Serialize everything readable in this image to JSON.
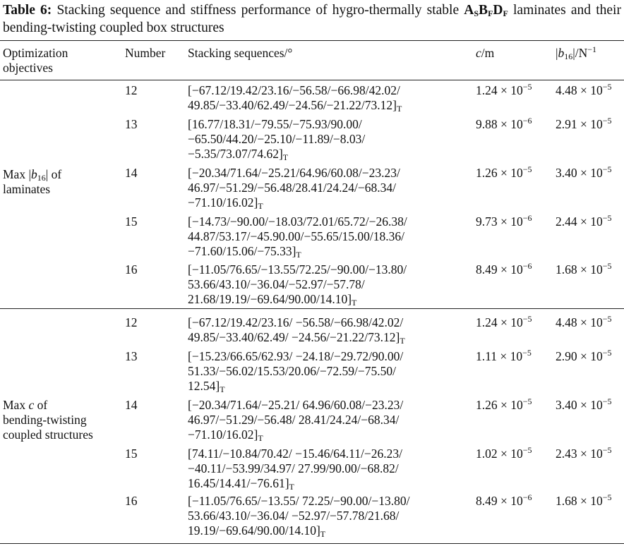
{
  "caption": {
    "label": "Table 6:",
    "text_before": " Stacking sequence and stiffness performance of hygro-thermally stable ",
    "code": [
      "A",
      "S",
      "B",
      "F",
      "D",
      "F"
    ],
    "text_after": " laminates and their bending-twisting coupled box structures"
  },
  "headers": {
    "objective_line1": "Optimization",
    "objective_line2": "objectives",
    "number": "Number",
    "stacking": "Stacking sequences/°",
    "c_var": "c",
    "c_unit": "/m",
    "b_pre": "|",
    "b_var": "b",
    "b_sub": "16",
    "b_post": "|/N",
    "b_exp": "−1"
  },
  "groups": [
    {
      "objective": {
        "line1_pre": "Max |",
        "line1_var": "b",
        "line1_sub": "16",
        "line1_post": "| of",
        "line2": "laminates"
      },
      "rows": [
        {
          "number": "12",
          "lines": [
            "[−67.12/19.42/23.16/−56.58/−66.98/42.02/",
            "49.85/−33.40/62.49/−24.56/−21.22/73.12]"
          ],
          "subscript": "T",
          "c_mant": "1.24 × 10",
          "c_exp": "−5",
          "b_mant": "4.48 × 10",
          "b_exp": "−5"
        },
        {
          "number": "13",
          "lines": [
            "[16.77/18.31/−79.55/−75.93/90.00/",
            "−65.50/44.20/−25.10/−11.89/−8.03/",
            "−5.35/73.07/74.62]"
          ],
          "subscript": "T",
          "c_mant": "9.88 × 10",
          "c_exp": "−6",
          "b_mant": "2.91 × 10",
          "b_exp": "−5"
        },
        {
          "number": "14",
          "lines": [
            "[−20.34/71.64/−25.21/64.96/60.08/−23.23/",
            "46.97/−51.29/−56.48/28.41/24.24/−68.34/",
            "−71.10/16.02]"
          ],
          "subscript": "T",
          "c_mant": "1.26 × 10",
          "c_exp": "−5",
          "b_mant": "3.40 × 10",
          "b_exp": "−5"
        },
        {
          "number": "15",
          "lines": [
            "[−14.73/−90.00/−18.03/72.01/65.72/−26.38/",
            "44.87/53.17/−45.90.00/−55.65/15.00/18.36/",
            "−71.60/15.06/−75.33]"
          ],
          "subscript": "T",
          "c_mant": "9.73 × 10",
          "c_exp": "−6",
          "b_mant": "2.44 × 10",
          "b_exp": "−5"
        },
        {
          "number": "16",
          "lines": [
            "[−11.05/76.65/−13.55/72.25/−90.00/−13.80/",
            "53.66/43.10/−36.04/−52.97/−57.78/",
            "21.68/19.19/−69.64/90.00/14.10]"
          ],
          "subscript": "T",
          "c_mant": "8.49 × 10",
          "c_exp": "−6",
          "b_mant": "1.68 × 10",
          "b_exp": "−5"
        }
      ]
    },
    {
      "objective": {
        "line1_pre": "Max ",
        "line1_var": "c",
        "line1_sub": "",
        "line1_post": " of",
        "line2": "bending-twisting",
        "line3": "coupled structures"
      },
      "rows": [
        {
          "number": "12",
          "lines": [
            "[−67.12/19.42/23.16/ −56.58/−66.98/42.02/",
            "49.85/−33.40/62.49/ −24.56/−21.22/73.12]"
          ],
          "subscript": "T",
          "c_mant": "1.24 × 10",
          "c_exp": "−5",
          "b_mant": "4.48 × 10",
          "b_exp": "−5"
        },
        {
          "number": "13",
          "lines": [
            "[−15.23/66.65/62.93/ −24.18/−29.72/90.00/",
            "51.33/−56.02/15.53/20.06/−72.59/−75.50/",
            "12.54]"
          ],
          "subscript": "T",
          "c_mant": "1.11 × 10",
          "c_exp": "−5",
          "b_mant": "2.90 × 10",
          "b_exp": "−5"
        },
        {
          "number": "14",
          "lines": [
            "[−20.34/71.64/−25.21/ 64.96/60.08/−23.23/",
            "46.97/−51.29/−56.48/ 28.41/24.24/−68.34/",
            "−71.10/16.02]"
          ],
          "subscript": "T",
          "c_mant": "1.26 × 10",
          "c_exp": "−5",
          "b_mant": "3.40 × 10",
          "b_exp": "−5"
        },
        {
          "number": "15",
          "lines": [
            "[74.11/−10.84/70.42/ −15.46/64.11/−26.23/",
            "−40.11/−53.99/34.97/ 27.99/90.00/−68.82/",
            "16.45/14.41/−76.61]"
          ],
          "subscript": "T",
          "c_mant": "1.02 × 10",
          "c_exp": "−5",
          "b_mant": "2.43 × 10",
          "b_exp": "−5"
        },
        {
          "number": "16",
          "lines": [
            "[−11.05/76.65/−13.55/ 72.25/−90.00/−13.80/",
            "53.66/43.10/−36.04/ −52.97/−57.78/21.68/",
            "19.19/−69.64/90.00/14.10]"
          ],
          "subscript": "T",
          "c_mant": "8.49 × 10",
          "c_exp": "−6",
          "b_mant": "1.68 × 10",
          "b_exp": "−5"
        }
      ]
    }
  ]
}
